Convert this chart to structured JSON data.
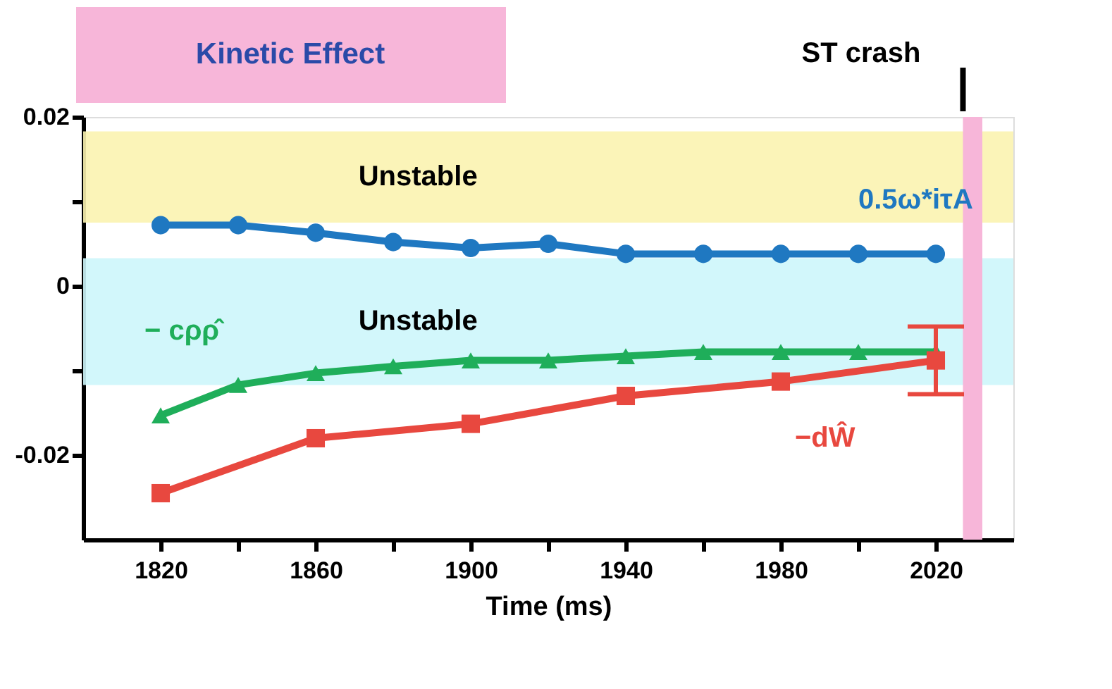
{
  "chart_data": {
    "type": "line",
    "xlabel": "Time (ms)",
    "x": [
      1820,
      1840,
      1860,
      1880,
      1900,
      1920,
      1940,
      1960,
      1980,
      2000,
      2020
    ],
    "xlim": [
      1800,
      2040
    ],
    "xticks": [
      1820,
      {
        "value": 1840,
        "label": null
      },
      1860,
      {
        "value": 1880,
        "label": null
      },
      1900,
      {
        "value": 1920,
        "label": null
      },
      1940,
      {
        "value": 1960,
        "label": null
      },
      1980,
      {
        "value": 2000,
        "label": null
      },
      2020
    ],
    "ylim": [
      -0.03,
      0.02
    ],
    "yticks": [
      -0.02,
      {
        "value": -0.01,
        "label": null
      },
      0,
      {
        "value": 0.01,
        "label": null
      },
      0.02
    ],
    "series": [
      {
        "name": "0.5ω*iτA",
        "color": "#1f78c1",
        "marker": "circle",
        "values": [
          0.0072,
          0.0072,
          0.0063,
          0.0052,
          0.0045,
          0.005,
          0.0038,
          0.0038,
          0.0038,
          0.0038,
          0.0038
        ]
      },
      {
        "name": "− cρρ̂",
        "color": "#1fae5a",
        "marker": "triangle",
        "values": [
          -0.0153,
          -0.0117,
          -0.0103,
          -0.0095,
          -0.0088,
          -0.0088,
          -0.0083,
          -0.0078,
          -0.0078,
          -0.0078,
          -0.0078
        ]
      },
      {
        "name": "−dŴ",
        "color": "#e8483f",
        "marker": "square",
        "x": [
          1820,
          1860,
          1900,
          1940,
          1980,
          2020
        ],
        "values": [
          -0.0245,
          -0.018,
          -0.0163,
          -0.013,
          -0.0113,
          -0.0088
        ],
        "errors": [
          null,
          null,
          null,
          null,
          null,
          0.004
        ]
      }
    ],
    "bands": [
      {
        "axis": "y",
        "from": 0.0075,
        "to": 0.0183,
        "label": "Unstable",
        "color": "#fbf3b0"
      },
      {
        "axis": "y",
        "from": -0.0117,
        "to": 0.0033,
        "label": "Unstable",
        "color": "#cdf6fb"
      },
      {
        "axis": "x",
        "from": 2027,
        "to": 2032,
        "label": "ST crash",
        "color": "#f7b6d9"
      }
    ],
    "grid": false,
    "annotations": [
      "Kinetic Effect"
    ]
  }
}
